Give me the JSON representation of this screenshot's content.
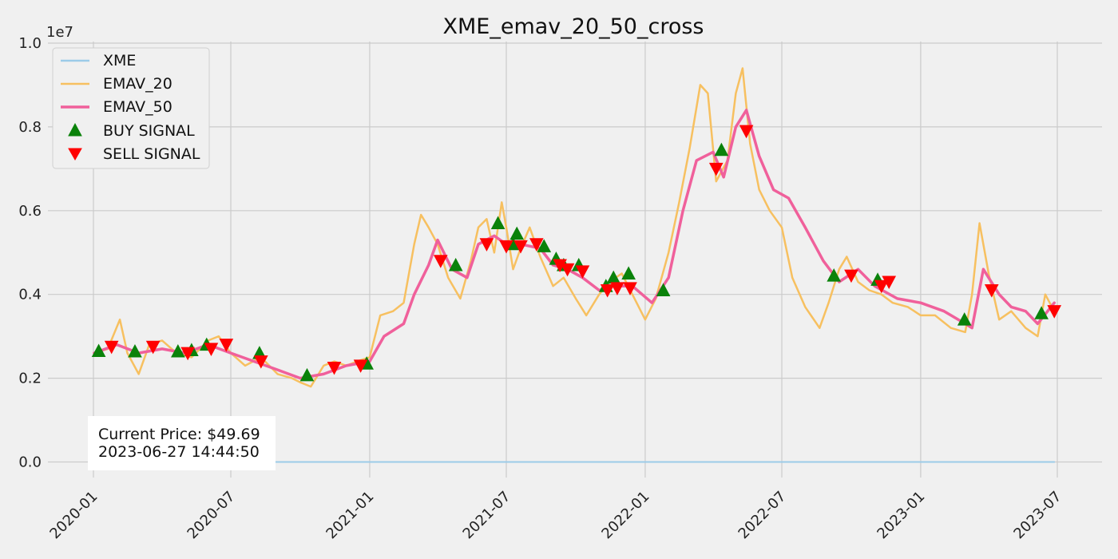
{
  "chart_data": {
    "type": "line",
    "title": "XME_emav_20_50_cross",
    "xlabel": "",
    "ylabel": "",
    "y_scale_label": "1e7",
    "x_range": [
      "2020-01-01",
      "2023-06-30"
    ],
    "ylim": [
      0.0,
      1.0
    ],
    "x_ticks": [
      "2020-01",
      "2020-07",
      "2021-01",
      "2021-07",
      "2022-01",
      "2022-07",
      "2023-01",
      "2023-07"
    ],
    "y_ticks": [
      "0.0",
      "0.2",
      "0.4",
      "0.6",
      "0.8",
      "1.0"
    ],
    "grid": true,
    "legend_position": "top-left",
    "legend": [
      "XME",
      "EMAV_20",
      "EMAV_50",
      "BUY SIGNAL",
      "SELL SIGNAL"
    ],
    "colors": {
      "xme": "#9ccbe8",
      "emav20": "#f7c060",
      "emav50": "#f0609b",
      "buy": "#0a820a",
      "sell": "#ff0000",
      "background": "#f0f0f0",
      "grid": "#cbcbcb"
    },
    "annotation": {
      "line1": "Current Price: $49.69",
      "line2": "2023-06-27 14:44:50"
    },
    "series": [
      {
        "name": "XME",
        "x": [
          "2020-01-02",
          "2023-06-27"
        ],
        "y": [
          0.0,
          0.0
        ]
      },
      {
        "name": "EMAV_20",
        "x": [
          "2020-01-02",
          "2020-01-20",
          "2020-02-05",
          "2020-02-15",
          "2020-03-01",
          "2020-03-15",
          "2020-04-01",
          "2020-04-20",
          "2020-05-10",
          "2020-06-01",
          "2020-06-15",
          "2020-07-01",
          "2020-07-20",
          "2020-08-10",
          "2020-09-01",
          "2020-09-20",
          "2020-10-01",
          "2020-10-15",
          "2020-11-01",
          "2020-11-15",
          "2020-12-01",
          "2020-12-15",
          "2021-01-01",
          "2021-01-15",
          "2021-02-01",
          "2021-02-15",
          "2021-03-01",
          "2021-03-10",
          "2021-03-20",
          "2021-04-01",
          "2021-04-15",
          "2021-05-01",
          "2021-05-15",
          "2021-05-25",
          "2021-06-05",
          "2021-06-15",
          "2021-06-25",
          "2021-07-01",
          "2021-07-10",
          "2021-07-20",
          "2021-08-01",
          "2021-08-15",
          "2021-09-01",
          "2021-09-15",
          "2021-10-01",
          "2021-10-15",
          "2021-11-01",
          "2021-11-15",
          "2021-12-01",
          "2021-12-15",
          "2022-01-01",
          "2022-01-15",
          "2022-02-01",
          "2022-02-15",
          "2022-03-01",
          "2022-03-15",
          "2022-03-25",
          "2022-04-05",
          "2022-04-20",
          "2022-05-01",
          "2022-05-10",
          "2022-05-20",
          "2022-06-01",
          "2022-06-15",
          "2022-07-01",
          "2022-07-15",
          "2022-08-01",
          "2022-08-20",
          "2022-09-01",
          "2022-09-15",
          "2022-09-25",
          "2022-10-10",
          "2022-10-25",
          "2022-11-10",
          "2022-11-25",
          "2022-12-15",
          "2023-01-01",
          "2023-01-20",
          "2023-02-10",
          "2023-03-01",
          "2023-03-10",
          "2023-03-20",
          "2023-04-01",
          "2023-04-15",
          "2023-05-01",
          "2023-05-20",
          "2023-06-05",
          "2023-06-15",
          "2023-06-27"
        ],
        "y": [
          0.26,
          0.27,
          0.34,
          0.26,
          0.21,
          0.28,
          0.29,
          0.26,
          0.25,
          0.29,
          0.3,
          0.26,
          0.23,
          0.25,
          0.21,
          0.2,
          0.19,
          0.18,
          0.23,
          0.24,
          0.23,
          0.24,
          0.25,
          0.35,
          0.36,
          0.38,
          0.52,
          0.59,
          0.56,
          0.52,
          0.44,
          0.39,
          0.48,
          0.56,
          0.58,
          0.5,
          0.62,
          0.56,
          0.46,
          0.51,
          0.56,
          0.49,
          0.42,
          0.44,
          0.39,
          0.35,
          0.4,
          0.43,
          0.45,
          0.4,
          0.34,
          0.39,
          0.5,
          0.62,
          0.75,
          0.9,
          0.88,
          0.67,
          0.72,
          0.88,
          0.94,
          0.76,
          0.65,
          0.6,
          0.56,
          0.44,
          0.37,
          0.32,
          0.38,
          0.46,
          0.49,
          0.43,
          0.41,
          0.4,
          0.38,
          0.37,
          0.35,
          0.35,
          0.32,
          0.31,
          0.4,
          0.57,
          0.45,
          0.34,
          0.36,
          0.32,
          0.3,
          0.4,
          0.36
        ]
      },
      {
        "name": "EMAV_50",
        "x": [
          "2020-01-02",
          "2020-02-01",
          "2020-03-01",
          "2020-04-01",
          "2020-05-01",
          "2020-06-01",
          "2020-07-01",
          "2020-08-01",
          "2020-09-01",
          "2020-10-01",
          "2020-11-01",
          "2020-12-01",
          "2021-01-01",
          "2021-01-20",
          "2021-02-15",
          "2021-03-01",
          "2021-03-20",
          "2021-04-01",
          "2021-04-20",
          "2021-05-10",
          "2021-05-25",
          "2021-06-15",
          "2021-07-01",
          "2021-07-20",
          "2021-08-15",
          "2021-09-01",
          "2021-09-20",
          "2021-10-10",
          "2021-11-01",
          "2021-11-20",
          "2021-12-15",
          "2022-01-10",
          "2022-02-01",
          "2022-02-20",
          "2022-03-10",
          "2022-04-01",
          "2022-04-15",
          "2022-05-01",
          "2022-05-15",
          "2022-06-01",
          "2022-06-20",
          "2022-07-10",
          "2022-08-01",
          "2022-08-25",
          "2022-09-15",
          "2022-10-10",
          "2022-11-01",
          "2022-12-01",
          "2023-01-01",
          "2023-02-01",
          "2023-03-01",
          "2023-03-10",
          "2023-03-25",
          "2023-04-15",
          "2023-05-01",
          "2023-05-20",
          "2023-06-05",
          "2023-06-27"
        ],
        "y": [
          0.26,
          0.28,
          0.26,
          0.27,
          0.26,
          0.28,
          0.26,
          0.24,
          0.22,
          0.2,
          0.21,
          0.23,
          0.24,
          0.3,
          0.33,
          0.4,
          0.47,
          0.53,
          0.46,
          0.44,
          0.52,
          0.54,
          0.52,
          0.52,
          0.51,
          0.47,
          0.46,
          0.44,
          0.41,
          0.42,
          0.42,
          0.38,
          0.44,
          0.6,
          0.72,
          0.74,
          0.68,
          0.8,
          0.84,
          0.73,
          0.65,
          0.63,
          0.56,
          0.48,
          0.43,
          0.46,
          0.42,
          0.39,
          0.38,
          0.36,
          0.33,
          0.32,
          0.46,
          0.4,
          0.37,
          0.36,
          0.33,
          0.38
        ]
      }
    ],
    "buy_signals": {
      "name": "BUY SIGNAL",
      "x": [
        "2020-01-08",
        "2020-02-25",
        "2020-04-22",
        "2020-05-10",
        "2020-05-30",
        "2020-08-08",
        "2020-10-10",
        "2020-12-28",
        "2021-04-25",
        "2021-06-20",
        "2021-07-10",
        "2021-07-15",
        "2021-08-20",
        "2021-09-05",
        "2021-09-15",
        "2021-10-05",
        "2021-11-10",
        "2021-11-20",
        "2021-12-10",
        "2022-01-25",
        "2022-04-12",
        "2022-09-08",
        "2022-11-05",
        "2023-02-28",
        "2023-06-10"
      ],
      "y": [
        0.265,
        0.264,
        0.264,
        0.267,
        0.28,
        0.26,
        0.207,
        0.235,
        0.47,
        0.57,
        0.52,
        0.545,
        0.515,
        0.485,
        0.47,
        0.47,
        0.42,
        0.44,
        0.45,
        0.41,
        0.745,
        0.445,
        0.435,
        0.34,
        0.355
      ]
    },
    "sell_signals": {
      "name": "SELL SIGNAL",
      "x": [
        "2020-01-25",
        "2020-03-20",
        "2020-05-05",
        "2020-06-05",
        "2020-06-25",
        "2020-08-10",
        "2020-11-15",
        "2020-12-20",
        "2021-04-05",
        "2021-06-05",
        "2021-07-01",
        "2021-07-20",
        "2021-08-10",
        "2021-09-10",
        "2021-09-20",
        "2021-10-10",
        "2021-11-12",
        "2021-11-25",
        "2021-12-12",
        "2022-04-05",
        "2022-05-15",
        "2022-10-01",
        "2022-11-10",
        "2022-11-20",
        "2023-04-05",
        "2023-06-27"
      ],
      "y": [
        0.275,
        0.275,
        0.26,
        0.27,
        0.28,
        0.24,
        0.225,
        0.23,
        0.48,
        0.52,
        0.515,
        0.515,
        0.52,
        0.47,
        0.46,
        0.455,
        0.41,
        0.415,
        0.415,
        0.7,
        0.79,
        0.445,
        0.42,
        0.43,
        0.41,
        0.36
      ]
    }
  }
}
